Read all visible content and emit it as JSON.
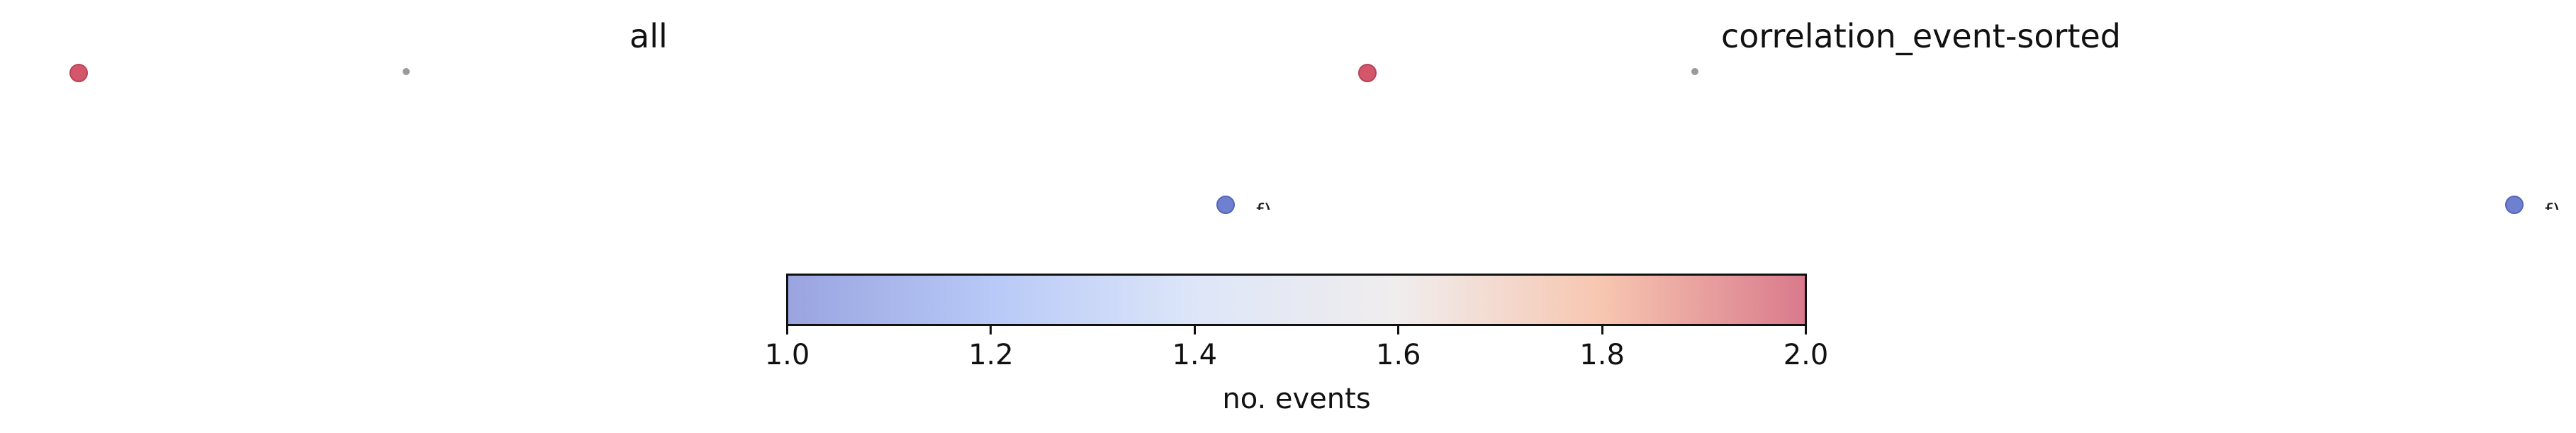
{
  "chart_data": [
    {
      "type": "scatter",
      "panel": "all",
      "title": "all",
      "nodes": [
        {
          "events": 2,
          "color": "#d4566b"
        },
        {
          "events": 1,
          "color": "#8a8a8a",
          "small": true
        },
        {
          "events": 1,
          "color": "#6f80d0"
        }
      ],
      "clipped_label": "f)"
    },
    {
      "type": "scatter",
      "panel": "correlation_event-sorted",
      "title": "correlation_event-sorted",
      "nodes": [
        {
          "events": 2,
          "color": "#d4566b"
        },
        {
          "events": 1,
          "color": "#8a8a8a",
          "small": true
        },
        {
          "events": 1,
          "color": "#6f80d0"
        }
      ],
      "clipped_label": "f)"
    }
  ],
  "colorbar": {
    "label": "no. events",
    "range": [
      1.0,
      2.0
    ],
    "ticks": [
      "1.0",
      "1.2",
      "1.4",
      "1.6",
      "1.8",
      "2.0"
    ],
    "colormap": "coolwarm",
    "colors": [
      "#9aa4e0",
      "#b7c9f7",
      "#dde6f8",
      "#f0eded",
      "#f7c6b0",
      "#d97a8c"
    ]
  }
}
